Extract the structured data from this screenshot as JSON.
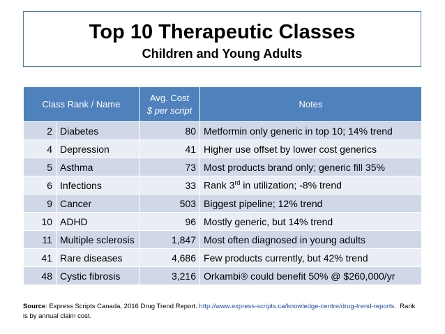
{
  "title": {
    "main": "Top 10 Therapeutic Classes",
    "sub": "Children and Young Adults"
  },
  "table": {
    "headers": {
      "class_rank": "Class Rank / Name",
      "cost_line1": "Avg. Cost",
      "cost_line2": "$ per script",
      "notes": "Notes"
    },
    "rows": [
      {
        "rank": "2",
        "name": "Diabetes",
        "cost": "80",
        "notes": "Metformin only generic in top 10; 14% trend"
      },
      {
        "rank": "4",
        "name": "Depression",
        "cost": "41",
        "notes": "Higher use offset by lower cost generics"
      },
      {
        "rank": "5",
        "name": "Asthma",
        "cost": "73",
        "notes": "Most products brand only; generic fill 35%"
      },
      {
        "rank": "6",
        "name": "Infections",
        "cost": "33",
        "notes_pre": "Rank 3",
        "notes_sup": "rd",
        "notes_post": " in utilization; -8% trend"
      },
      {
        "rank": "9",
        "name": "Cancer",
        "cost": "503",
        "notes": "Biggest pipeline; 12% trend"
      },
      {
        "rank": "10",
        "name": "ADHD",
        "cost": "96",
        "notes": "Mostly generic, but 14% trend"
      },
      {
        "rank": "11",
        "name": "Multiple sclerosis",
        "cost": "1,847",
        "notes": "Most often diagnosed in young adults"
      },
      {
        "rank": "41",
        "name": "Rare diseases",
        "cost": "4,686",
        "notes": "Few products currently, but 42% trend"
      },
      {
        "rank": "48",
        "name": "Cystic fibrosis",
        "cost": "3,216",
        "notes": "Orkambi® could benefit 50% @ $260,000/yr"
      }
    ]
  },
  "source": {
    "label": "Source",
    "text": ": Express Scripts Canada, 2016 Drug Trend Report. ",
    "link": "http://www.express-scripts.ca/knowledge-centre/drug-trend-reports",
    "tail": ".  Rank is by annual claim cost."
  },
  "colors": {
    "header_bg": "#4f81bd",
    "row_odd": "#d0d8e8",
    "row_even": "#e9edf4",
    "link": "#1f4ea8"
  }
}
